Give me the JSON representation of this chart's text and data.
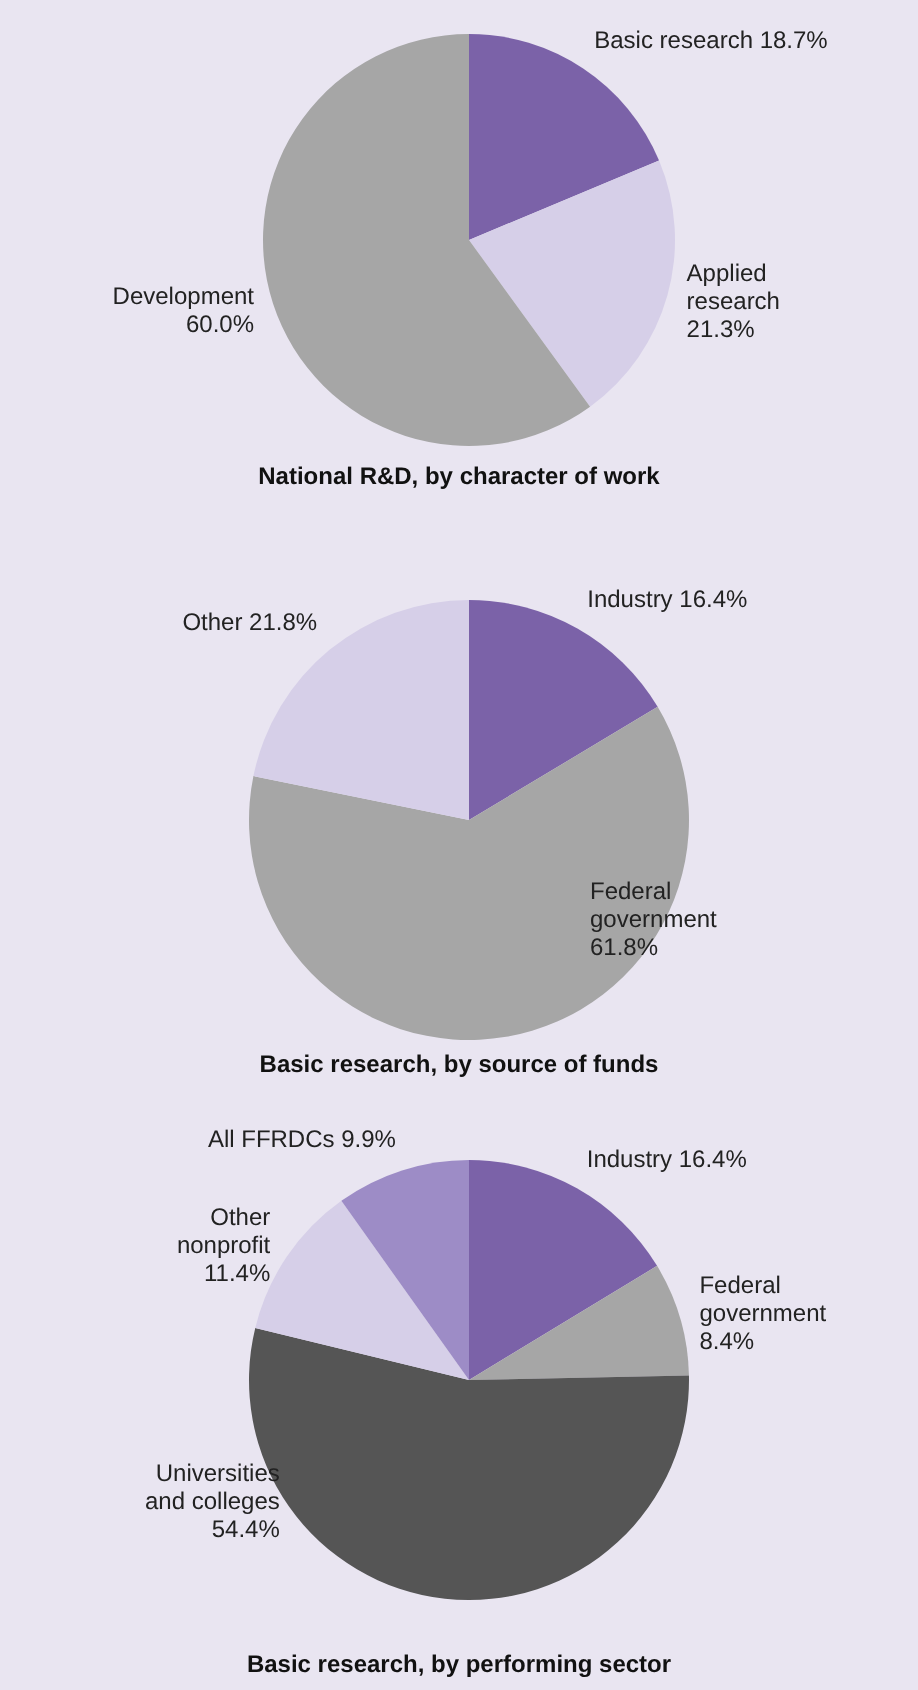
{
  "chart_data": [
    {
      "type": "pie",
      "title": "National R&D, by character of work",
      "categories": [
        "Basic research",
        "Applied research",
        "Development"
      ],
      "values": [
        18.7,
        21.3,
        60.0
      ],
      "value_labels": [
        "18.7%",
        "21.3%",
        "60.0%"
      ],
      "colors": [
        "#7b62a8",
        "#d6cfe8",
        "#a6a6a6"
      ]
    },
    {
      "type": "pie",
      "title": "Basic research, by source of funds",
      "categories": [
        "Industry",
        "Federal government",
        "Other"
      ],
      "values": [
        16.4,
        61.8,
        21.8
      ],
      "value_labels": [
        "16.4%",
        "61.8%",
        "21.8%"
      ],
      "colors": [
        "#7b62a8",
        "#a6a6a6",
        "#d6cfe8"
      ]
    },
    {
      "type": "pie",
      "title": "Basic research, by performing sector",
      "categories": [
        "Industry",
        "Federal government",
        "Universities and colleges",
        "Other nonprofit",
        "All FFRDCs"
      ],
      "values": [
        16.4,
        8.4,
        54.4,
        11.4,
        9.9
      ],
      "value_labels": [
        "16.4%",
        "8.4%",
        "54.4%",
        "11.4%",
        "9.9%"
      ],
      "colors": [
        "#7b62a8",
        "#a6a6a6",
        "#555555",
        "#d6cfe8",
        "#9d8cc6"
      ]
    }
  ]
}
